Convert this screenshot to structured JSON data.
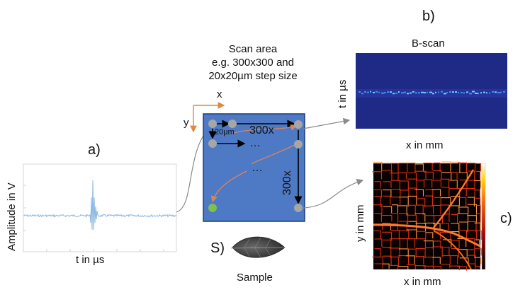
{
  "panels": {
    "a": "a)",
    "b": "b)",
    "c": "c)",
    "s": "S)"
  },
  "signal_plot": {
    "ylabel": "Amplitude in V",
    "xlabel": "t in µs",
    "line_color": "#8fbbe3"
  },
  "scan_area": {
    "title_lines": [
      "Scan area",
      "e.g. 300x300 and",
      "20x20µm step size"
    ],
    "axis_x": "x",
    "axis_y": "y",
    "width_label": "300x",
    "height_label": "300x",
    "step_label": "20µm",
    "ellipsis_1": "…",
    "ellipsis_2": "…",
    "fill_color": "#4e79c4",
    "axis_color": "#e0893a",
    "point_color": "#a6a6a6",
    "start_point_color": "#7fbf4d",
    "path_color": "#d9855a"
  },
  "bscan": {
    "title": "B-scan",
    "ylabel": "t in µs",
    "xlabel": "x in mm",
    "bg_color": "#1e2a86"
  },
  "cscan": {
    "ylabel": "y in mm",
    "xlabel": "x in mm",
    "colormap": "hot"
  },
  "sample": {
    "label": "Sample"
  }
}
